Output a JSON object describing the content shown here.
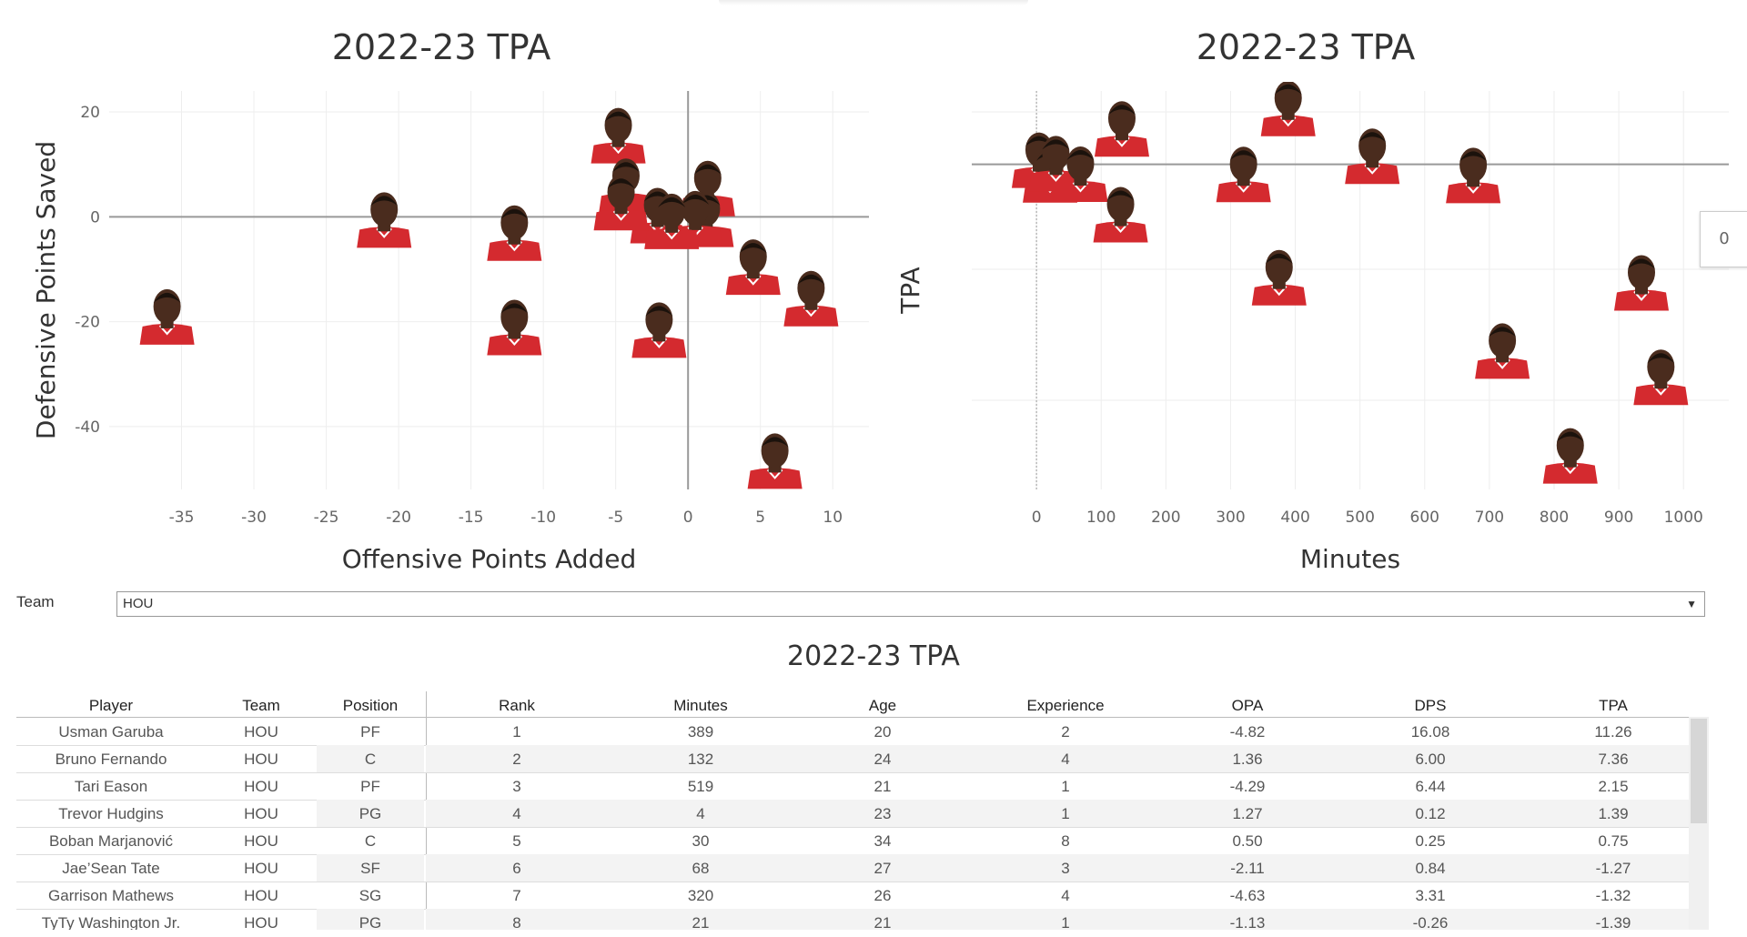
{
  "chart_data": [
    {
      "type": "scatter",
      "title": "2022-23 TPA",
      "xlabel": "Offensive Points Added",
      "ylabel": "Defensive Points Saved",
      "xlim": [
        -40,
        12.5
      ],
      "ylim": [
        -52,
        24
      ],
      "xticks": [
        -35,
        -30,
        -25,
        -20,
        -15,
        -10,
        -5,
        0,
        5,
        10
      ],
      "yticks": [
        20,
        0,
        -20,
        -40
      ],
      "reference_lines": {
        "x": 0,
        "y": 0
      },
      "marker": "player headshot",
      "points": [
        {
          "x": -4.82,
          "y": 16.08
        },
        {
          "x": 1.36,
          "y": 6.0
        },
        {
          "x": -4.29,
          "y": 6.44
        },
        {
          "x": 1.27,
          "y": 0.12
        },
        {
          "x": 0.5,
          "y": 0.25
        },
        {
          "x": -2.11,
          "y": 0.84
        },
        {
          "x": -4.63,
          "y": 3.31
        },
        {
          "x": -1.13,
          "y": -0.26
        },
        {
          "x": -21,
          "y": 0
        },
        {
          "x": -12,
          "y": -2.5
        },
        {
          "x": -12,
          "y": -20.5
        },
        {
          "x": -36,
          "y": -18.5
        },
        {
          "x": -2,
          "y": -21
        },
        {
          "x": 4.5,
          "y": -9
        },
        {
          "x": 8.5,
          "y": -15
        },
        {
          "x": 6,
          "y": -46
        }
      ]
    },
    {
      "type": "scatter",
      "title": "2022-23 TPA",
      "xlabel": "Minutes",
      "ylabel": "TPA",
      "xlim": [
        -100,
        1070
      ],
      "xticks": [
        0,
        100,
        200,
        300,
        400,
        500,
        600,
        700,
        800,
        900,
        1000
      ],
      "marker": "player headshot",
      "points": [
        {
          "x": 4,
          "y": 1.39
        },
        {
          "x": 21,
          "y": -1.39
        },
        {
          "x": 30,
          "y": 0.75
        },
        {
          "x": 68,
          "y": -1.27
        },
        {
          "x": 132,
          "y": 7.36
        },
        {
          "x": 320,
          "y": -1.32
        },
        {
          "x": 389,
          "y": 11.26
        },
        {
          "x": 519,
          "y": 2.15
        },
        {
          "x": 130,
          "y": -9
        },
        {
          "x": 375,
          "y": -21
        },
        {
          "x": 675,
          "y": -1.5
        },
        {
          "x": 720,
          "y": -35
        },
        {
          "x": 825,
          "y": -55
        },
        {
          "x": 935,
          "y": -22
        },
        {
          "x": 965,
          "y": -40
        }
      ]
    }
  ],
  "side_panel": {
    "value": "0"
  },
  "filter": {
    "label": "Team",
    "selected": "HOU"
  },
  "table": {
    "title": "2022-23 TPA",
    "columns": [
      "Player",
      "Team",
      "Position",
      "Rank",
      "Minutes",
      "Age",
      "Experience",
      "OPA",
      "DPS",
      "TPA"
    ],
    "rows": [
      [
        "Usman Garuba",
        "HOU",
        "PF",
        "1",
        "389",
        "20",
        "2",
        "-4.82",
        "16.08",
        "11.26"
      ],
      [
        "Bruno Fernando",
        "HOU",
        "C",
        "2",
        "132",
        "24",
        "4",
        "1.36",
        "6.00",
        "7.36"
      ],
      [
        "Tari Eason",
        "HOU",
        "PF",
        "3",
        "519",
        "21",
        "1",
        "-4.29",
        "6.44",
        "2.15"
      ],
      [
        "Trevor Hudgins",
        "HOU",
        "PG",
        "4",
        "4",
        "23",
        "1",
        "1.27",
        "0.12",
        "1.39"
      ],
      [
        "Boban Marjanović",
        "HOU",
        "C",
        "5",
        "30",
        "34",
        "8",
        "0.50",
        "0.25",
        "0.75"
      ],
      [
        "Jae’Sean Tate",
        "HOU",
        "SF",
        "6",
        "68",
        "27",
        "3",
        "-2.11",
        "0.84",
        "-1.27"
      ],
      [
        "Garrison Mathews",
        "HOU",
        "SG",
        "7",
        "320",
        "26",
        "4",
        "-4.63",
        "3.31",
        "-1.32"
      ],
      [
        "TyTy Washington Jr.",
        "HOU",
        "PG",
        "8",
        "21",
        "21",
        "1",
        "-1.13",
        "-0.26",
        "-1.39"
      ]
    ]
  },
  "colors": {
    "jersey": "#d42a2f",
    "skin": "#4a2c1e",
    "grid": "#eeeeee",
    "refline": "#999999"
  }
}
